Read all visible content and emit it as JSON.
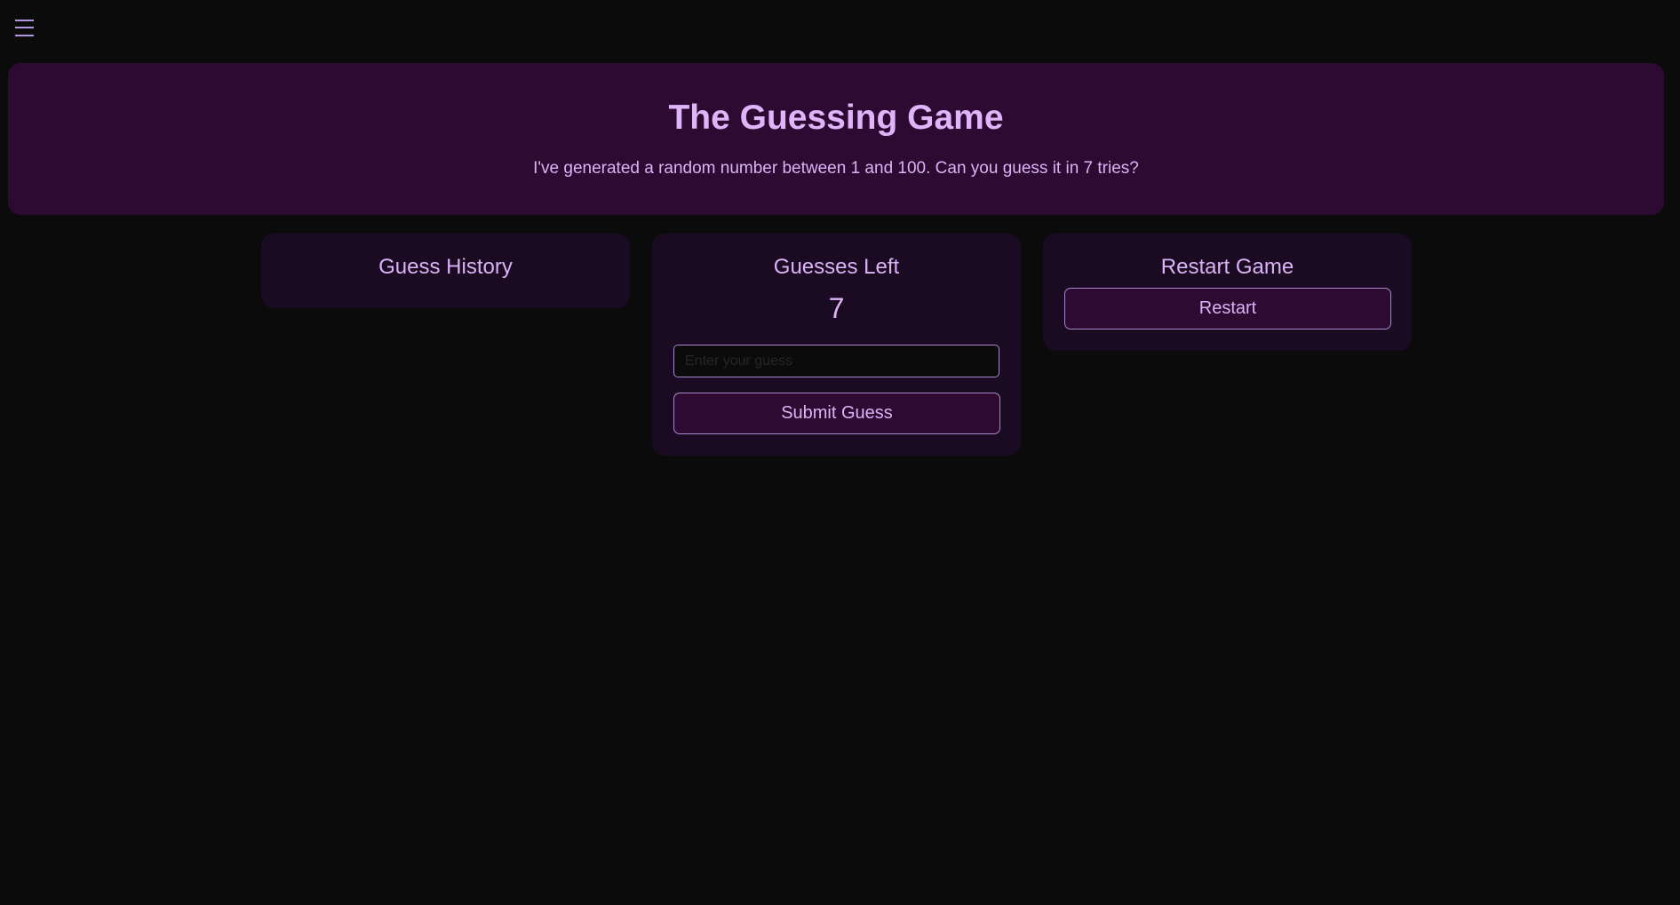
{
  "menu": {
    "icon": "hamburger-menu-icon"
  },
  "header": {
    "title": "The Guessing Game",
    "subtitle": "I've generated a random number between 1 and 100. Can you guess it in 7 tries?"
  },
  "history": {
    "title": "Guess History"
  },
  "guesses": {
    "title": "Guesses Left",
    "count": "7",
    "input_placeholder": "Enter your guess",
    "input_value": "",
    "submit_label": "Submit Guess"
  },
  "restart": {
    "title": "Restart Game",
    "button_label": "Restart"
  },
  "colors": {
    "background": "#0b0b0b",
    "header": "#2d0a31",
    "card": "#1a0a22",
    "accent_text": "#dcb2f6",
    "border": "#a988cc"
  }
}
